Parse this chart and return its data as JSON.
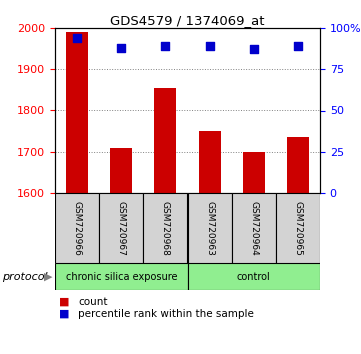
{
  "title": "GDS4579 / 1374069_at",
  "samples": [
    "GSM720966",
    "GSM720967",
    "GSM720968",
    "GSM720963",
    "GSM720964",
    "GSM720965"
  ],
  "counts": [
    1990,
    1710,
    1855,
    1750,
    1700,
    1735
  ],
  "percentile_ranks": [
    94,
    88,
    89,
    89,
    87,
    89
  ],
  "ylim_left": [
    1600,
    2000
  ],
  "ylim_right": [
    0,
    100
  ],
  "yticks_left": [
    1600,
    1700,
    1800,
    1900,
    2000
  ],
  "yticks_right": [
    0,
    25,
    50,
    75,
    100
  ],
  "ytick_right_labels": [
    "0",
    "25",
    "50",
    "75",
    "100%"
  ],
  "bar_color": "#cc0000",
  "dot_color": "#0000cc",
  "group1_label": "chronic silica exposure",
  "group2_label": "control",
  "group1_indices": [
    0,
    1,
    2
  ],
  "group2_indices": [
    3,
    4,
    5
  ],
  "group_bg_color": "#90ee90",
  "sample_bg_color": "#d3d3d3",
  "legend_bar_label": "count",
  "legend_dot_label": "percentile rank within the sample",
  "protocol_label": "protocol",
  "bar_width": 0.5,
  "dot_size": 40
}
